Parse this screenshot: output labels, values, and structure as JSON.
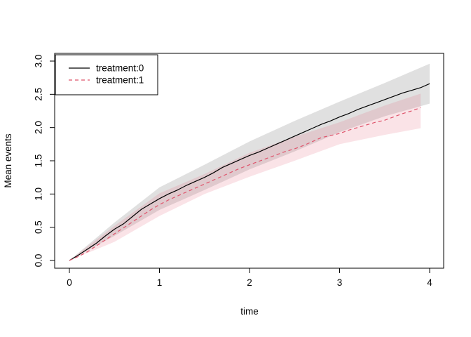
{
  "figure": {
    "background": "#ffffff",
    "box_color": "#000000"
  },
  "chart_data": {
    "type": "line",
    "title": "",
    "xlabel": "time",
    "ylabel": "Mean events",
    "xlim": [
      -0.16,
      4.16
    ],
    "ylim": [
      -0.12,
      3.12
    ],
    "grid": false,
    "xticks": [
      0,
      1,
      2,
      3,
      4
    ],
    "xtick_labels": [
      "0",
      "1",
      "2",
      "3",
      "4"
    ],
    "yticks": [
      0.0,
      0.5,
      1.0,
      1.5,
      2.0,
      2.5,
      3.0
    ],
    "ytick_labels": [
      "0.0",
      "0.5",
      "1.0",
      "1.5",
      "2.0",
      "2.5",
      "3.0"
    ],
    "legend": {
      "position": "topleft",
      "entries": [
        {
          "label": "treatment:0",
          "color": "#000000",
          "style": "solid"
        },
        {
          "label": "treatment:1",
          "color": "#DF536B",
          "style": "dashed"
        }
      ]
    },
    "series": [
      {
        "name": "treatment:0",
        "color": "#000000",
        "style": "solid",
        "x": [
          0,
          0.1,
          0.2,
          0.3,
          0.4,
          0.5,
          0.6,
          0.7,
          0.8,
          0.9,
          1.0,
          1.1,
          1.2,
          1.3,
          1.4,
          1.5,
          1.6,
          1.7,
          1.8,
          1.9,
          2.0,
          2.1,
          2.2,
          2.3,
          2.4,
          2.5,
          2.6,
          2.7,
          2.8,
          2.9,
          3.0,
          3.1,
          3.2,
          3.3,
          3.4,
          3.5,
          3.6,
          3.7,
          3.8,
          3.9,
          4.0
        ],
        "y": [
          0.0,
          0.08,
          0.17,
          0.26,
          0.37,
          0.47,
          0.55,
          0.66,
          0.77,
          0.85,
          0.93,
          1.0,
          1.06,
          1.13,
          1.19,
          1.25,
          1.32,
          1.4,
          1.46,
          1.52,
          1.58,
          1.63,
          1.69,
          1.75,
          1.81,
          1.87,
          1.93,
          1.99,
          2.05,
          2.1,
          2.16,
          2.21,
          2.27,
          2.32,
          2.37,
          2.42,
          2.47,
          2.52,
          2.56,
          2.6,
          2.66
        ],
        "band": {
          "x": [
            0,
            0.5,
            1.0,
            1.5,
            2.0,
            2.5,
            3.0,
            3.5,
            4.0
          ],
          "lower": [
            0,
            0.37,
            0.76,
            1.06,
            1.37,
            1.64,
            1.93,
            2.17,
            2.36
          ],
          "upper": [
            0,
            0.57,
            1.1,
            1.44,
            1.79,
            2.1,
            2.39,
            2.67,
            2.96
          ],
          "color": "#000000",
          "opacity": 0.12
        }
      },
      {
        "name": "treatment:1",
        "color": "#DF536B",
        "style": "dashed",
        "x": [
          0,
          0.1,
          0.2,
          0.3,
          0.4,
          0.5,
          0.6,
          0.7,
          0.8,
          0.9,
          1.0,
          1.1,
          1.2,
          1.3,
          1.4,
          1.5,
          1.6,
          1.7,
          1.8,
          1.9,
          2.0,
          2.1,
          2.2,
          2.3,
          2.4,
          2.5,
          2.6,
          2.7,
          2.8,
          2.9,
          3.0,
          3.1,
          3.2,
          3.3,
          3.4,
          3.5,
          3.6,
          3.7,
          3.8,
          3.9
        ],
        "y": [
          0.0,
          0.06,
          0.13,
          0.22,
          0.31,
          0.4,
          0.49,
          0.58,
          0.67,
          0.76,
          0.84,
          0.91,
          0.97,
          1.03,
          1.09,
          1.15,
          1.21,
          1.27,
          1.33,
          1.39,
          1.44,
          1.49,
          1.54,
          1.59,
          1.64,
          1.68,
          1.73,
          1.79,
          1.85,
          1.88,
          1.91,
          1.96,
          2.0,
          2.04,
          2.08,
          2.11,
          2.16,
          2.21,
          2.25,
          2.3
        ],
        "band": {
          "x": [
            0,
            0.5,
            1.0,
            1.5,
            2.0,
            2.5,
            3.0,
            3.5,
            3.9
          ],
          "lower": [
            0,
            0.28,
            0.67,
            1.0,
            1.26,
            1.5,
            1.75,
            1.89,
            1.99
          ],
          "upper": [
            0,
            0.52,
            1.01,
            1.3,
            1.62,
            1.86,
            2.08,
            2.33,
            2.51
          ],
          "color": "#DF536B",
          "opacity": 0.16
        }
      }
    ]
  }
}
